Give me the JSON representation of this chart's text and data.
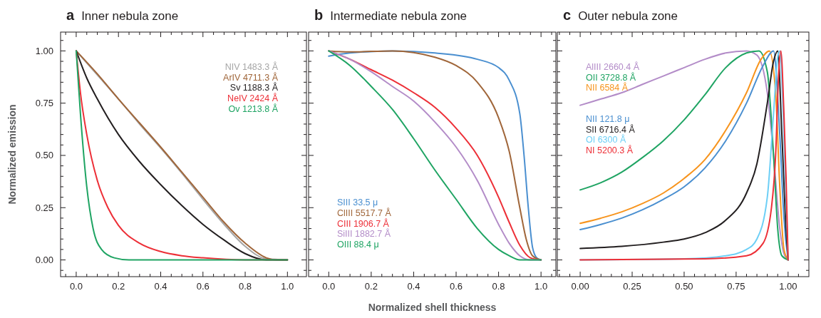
{
  "chart_data": [
    {
      "type": "line",
      "title": "a Inner nebula zone",
      "ylabel": "Normalized emission",
      "legend": "top right",
      "xlim": [
        -0.074,
        1.09
      ],
      "ylim": [
        -0.08,
        1.09
      ],
      "xticks": [
        {
          "value": 0,
          "label": "0.0"
        },
        {
          "value": 0.2,
          "label": "0.2"
        },
        {
          "value": 0.4,
          "label": "0.4"
        },
        {
          "value": 0.6,
          "label": "0.6"
        },
        {
          "value": 0.8,
          "label": "0.8"
        },
        {
          "value": 1,
          "label": "1.0"
        },
        {
          "value": -0.05,
          "label": null
        },
        {
          "value": 0.05,
          "label": null
        },
        {
          "value": 0.1,
          "label": null
        },
        {
          "value": 0.15,
          "label": null
        },
        {
          "value": 0.25,
          "label": null
        },
        {
          "value": 0.3,
          "label": null
        },
        {
          "value": 0.35,
          "label": null
        },
        {
          "value": 0.45,
          "label": null
        },
        {
          "value": 0.5,
          "label": null
        },
        {
          "value": 0.55,
          "label": null
        },
        {
          "value": 0.65,
          "label": null
        },
        {
          "value": 0.7,
          "label": null
        },
        {
          "value": 0.75,
          "label": null
        },
        {
          "value": 0.85,
          "label": null
        },
        {
          "value": 0.9,
          "label": null
        },
        {
          "value": 0.95,
          "label": null
        },
        {
          "value": 1.05,
          "label": null
        }
      ],
      "yticks": [
        {
          "value": 0,
          "label": "0.00"
        },
        {
          "value": 0.25,
          "label": "0.25"
        },
        {
          "value": 0.5,
          "label": "0.50"
        },
        {
          "value": 0.75,
          "label": "0.75"
        },
        {
          "value": 1,
          "label": "1.00"
        },
        {
          "value": -0.05,
          "label": null
        },
        {
          "value": 0.05,
          "label": null
        },
        {
          "value": 0.1,
          "label": null
        },
        {
          "value": 0.15,
          "label": null
        },
        {
          "value": 0.2,
          "label": null
        },
        {
          "value": 0.3,
          "label": null
        },
        {
          "value": 0.35,
          "label": null
        },
        {
          "value": 0.4,
          "label": null
        },
        {
          "value": 0.45,
          "label": null
        },
        {
          "value": 0.55,
          "label": null
        },
        {
          "value": 0.6,
          "label": null
        },
        {
          "value": 0.65,
          "label": null
        },
        {
          "value": 0.7,
          "label": null
        },
        {
          "value": 0.8,
          "label": null
        },
        {
          "value": 0.85,
          "label": null
        },
        {
          "value": 0.9,
          "label": null
        },
        {
          "value": 0.95,
          "label": null
        },
        {
          "value": 1.05,
          "label": null
        }
      ],
      "series": [
        {
          "name": "NIV 1483.3 Å",
          "color": "#a6a6a6",
          "x": [
            0,
            0.1,
            0.2,
            0.3,
            0.4,
            0.5,
            0.6,
            0.7,
            0.8,
            0.9,
            1
          ],
          "values": [
            1,
            0.885,
            0.77,
            0.65,
            0.535,
            0.415,
            0.29,
            0.17,
            0.065,
            0.005,
            0
          ]
        },
        {
          "name": "ArIV 4711.3 Å",
          "color": "#a0663a",
          "x": [
            0,
            0.1,
            0.2,
            0.3,
            0.4,
            0.5,
            0.6,
            0.7,
            0.8,
            0.9,
            0.95,
            1
          ],
          "values": [
            1,
            0.89,
            0.77,
            0.655,
            0.54,
            0.42,
            0.3,
            0.18,
            0.08,
            0.01,
            0,
            0
          ]
        },
        {
          "name": "Sv 1188.3 Å",
          "color": "#231f20",
          "x": [
            0,
            0.05,
            0.1,
            0.2,
            0.3,
            0.4,
            0.5,
            0.6,
            0.7,
            0.8,
            0.9,
            1
          ],
          "values": [
            1,
            0.87,
            0.77,
            0.6,
            0.47,
            0.36,
            0.26,
            0.17,
            0.095,
            0.03,
            0,
            0
          ]
        },
        {
          "name": "NeIV 2424 Å",
          "color": "#ed2f37",
          "x": [
            0,
            0.02,
            0.05,
            0.1,
            0.15,
            0.2,
            0.3,
            0.4,
            0.5,
            0.6,
            0.8,
            1
          ],
          "values": [
            1,
            0.8,
            0.6,
            0.38,
            0.25,
            0.165,
            0.08,
            0.04,
            0.02,
            0.01,
            0,
            0
          ]
        },
        {
          "name": "Ov 1213.8 Å",
          "color": "#1fa463",
          "x": [
            0,
            0.02,
            0.05,
            0.08,
            0.12,
            0.18,
            0.25,
            1
          ],
          "values": [
            1,
            0.7,
            0.35,
            0.15,
            0.05,
            0.01,
            0,
            0
          ]
        }
      ]
    },
    {
      "type": "line",
      "title": "b Intermediate nebula zone",
      "xlabel": "Normalized shell thickness",
      "legend": "bottom left",
      "tick_labels": "x",
      "xlim": [
        -0.095,
        1.07
      ],
      "ylim": [
        -0.08,
        1.09
      ],
      "xticks": [
        {
          "value": 0,
          "label": "0.0"
        },
        {
          "value": 0.2,
          "label": "0.2"
        },
        {
          "value": 0.4,
          "label": "0.4"
        },
        {
          "value": 0.6,
          "label": "0.6"
        },
        {
          "value": 0.8,
          "label": "0.8"
        },
        {
          "value": 1,
          "label": "1.0"
        },
        {
          "value": -0.05,
          "label": null
        },
        {
          "value": 0.05,
          "label": null
        },
        {
          "value": 0.1,
          "label": null
        },
        {
          "value": 0.15,
          "label": null
        },
        {
          "value": 0.25,
          "label": null
        },
        {
          "value": 0.3,
          "label": null
        },
        {
          "value": 0.35,
          "label": null
        },
        {
          "value": 0.45,
          "label": null
        },
        {
          "value": 0.5,
          "label": null
        },
        {
          "value": 0.55,
          "label": null
        },
        {
          "value": 0.65,
          "label": null
        },
        {
          "value": 0.7,
          "label": null
        },
        {
          "value": 0.75,
          "label": null
        },
        {
          "value": 0.85,
          "label": null
        },
        {
          "value": 0.9,
          "label": null
        },
        {
          "value": 0.95,
          "label": null
        },
        {
          "value": 1.05,
          "label": null
        }
      ],
      "yticks": [
        0,
        0.25,
        0.5,
        0.75,
        1,
        {
          "value": -0.05,
          "label": null
        },
        {
          "value": 0.05,
          "label": null
        },
        {
          "value": 0.1,
          "label": null
        },
        {
          "value": 0.15,
          "label": null
        },
        {
          "value": 0.2,
          "label": null
        },
        {
          "value": 0.3,
          "label": null
        },
        {
          "value": 0.35,
          "label": null
        },
        {
          "value": 0.4,
          "label": null
        },
        {
          "value": 0.45,
          "label": null
        },
        {
          "value": 0.55,
          "label": null
        },
        {
          "value": 0.6,
          "label": null
        },
        {
          "value": 0.65,
          "label": null
        },
        {
          "value": 0.7,
          "label": null
        },
        {
          "value": 0.8,
          "label": null
        },
        {
          "value": 0.85,
          "label": null
        },
        {
          "value": 0.9,
          "label": null
        },
        {
          "value": 0.95,
          "label": null
        },
        {
          "value": 1.05,
          "label": null
        }
      ],
      "series": [
        {
          "name": "SIII 33.5 μ",
          "color": "#4a8fd0",
          "x": [
            0,
            0.1,
            0.3,
            0.5,
            0.7,
            0.8,
            0.85,
            0.9,
            0.92,
            0.94,
            0.96,
            0.98,
            1
          ],
          "values": [
            0.975,
            0.99,
            1,
            0.99,
            0.96,
            0.92,
            0.86,
            0.7,
            0.5,
            0.25,
            0.06,
            0.01,
            0
          ]
        },
        {
          "name": "ClIII 5517.7 Å",
          "color": "#a0663a",
          "x": [
            0,
            0.1,
            0.3,
            0.5,
            0.6,
            0.7,
            0.8,
            0.85,
            0.9,
            0.93,
            0.96,
            1
          ],
          "values": [
            1,
            0.995,
            1,
            0.97,
            0.93,
            0.85,
            0.68,
            0.52,
            0.25,
            0.1,
            0.02,
            0
          ]
        },
        {
          "name": "CIII 1906.7 Å",
          "color": "#ed2f37",
          "x": [
            0,
            0.1,
            0.2,
            0.3,
            0.4,
            0.5,
            0.6,
            0.7,
            0.8,
            0.85,
            0.9,
            0.95,
            1
          ],
          "values": [
            1,
            0.96,
            0.91,
            0.86,
            0.8,
            0.73,
            0.63,
            0.5,
            0.3,
            0.18,
            0.07,
            0.01,
            0
          ]
        },
        {
          "name": "SiIII 1882.7 Å",
          "color": "#b38cc8",
          "x": [
            0,
            0.1,
            0.2,
            0.3,
            0.4,
            0.5,
            0.6,
            0.7,
            0.8,
            0.85,
            0.9,
            0.95,
            1
          ],
          "values": [
            1,
            0.96,
            0.9,
            0.83,
            0.76,
            0.66,
            0.54,
            0.38,
            0.17,
            0.08,
            0.02,
            0,
            0
          ]
        },
        {
          "name": "OIII 88.4 μ",
          "color": "#1fa463",
          "x": [
            0,
            0.1,
            0.2,
            0.3,
            0.4,
            0.5,
            0.6,
            0.7,
            0.8,
            0.85,
            0.9,
            1
          ],
          "values": [
            1,
            0.93,
            0.83,
            0.72,
            0.58,
            0.43,
            0.29,
            0.15,
            0.05,
            0.02,
            0,
            0
          ]
        }
      ]
    },
    {
      "type": "line",
      "title": "c Outer nebula zone",
      "legend": "top left",
      "tick_labels": "x",
      "xlim": [
        -0.11,
        1.1
      ],
      "ylim": [
        -0.08,
        1.09
      ],
      "xticks": [
        {
          "value": 0,
          "label": "0.00"
        },
        {
          "value": 0.25,
          "label": "0.25"
        },
        {
          "value": 0.5,
          "label": "0.50"
        },
        {
          "value": 0.75,
          "label": "0.75"
        },
        {
          "value": 1,
          "label": "1.00"
        },
        {
          "value": -0.1,
          "label": null
        },
        {
          "value": -0.05,
          "label": null
        },
        {
          "value": 0.05,
          "label": null
        },
        {
          "value": 0.1,
          "label": null
        },
        {
          "value": 0.15,
          "label": null
        },
        {
          "value": 0.2,
          "label": null
        },
        {
          "value": 0.3,
          "label": null
        },
        {
          "value": 0.35,
          "label": null
        },
        {
          "value": 0.4,
          "label": null
        },
        {
          "value": 0.45,
          "label": null
        },
        {
          "value": 0.55,
          "label": null
        },
        {
          "value": 0.6,
          "label": null
        },
        {
          "value": 0.65,
          "label": null
        },
        {
          "value": 0.7,
          "label": null
        },
        {
          "value": 0.8,
          "label": null
        },
        {
          "value": 0.85,
          "label": null
        },
        {
          "value": 0.9,
          "label": null
        },
        {
          "value": 0.95,
          "label": null
        },
        {
          "value": 1.05,
          "label": null
        }
      ],
      "yticks": [
        0,
        0.25,
        0.5,
        0.75,
        1,
        {
          "value": -0.05,
          "label": null
        },
        {
          "value": 0.05,
          "label": null
        },
        {
          "value": 0.1,
          "label": null
        },
        {
          "value": 0.15,
          "label": null
        },
        {
          "value": 0.2,
          "label": null
        },
        {
          "value": 0.3,
          "label": null
        },
        {
          "value": 0.35,
          "label": null
        },
        {
          "value": 0.4,
          "label": null
        },
        {
          "value": 0.45,
          "label": null
        },
        {
          "value": 0.55,
          "label": null
        },
        {
          "value": 0.6,
          "label": null
        },
        {
          "value": 0.65,
          "label": null
        },
        {
          "value": 0.7,
          "label": null
        },
        {
          "value": 0.8,
          "label": null
        },
        {
          "value": 0.85,
          "label": null
        },
        {
          "value": 0.9,
          "label": null
        },
        {
          "value": 0.95,
          "label": null
        },
        {
          "value": 1.05,
          "label": null
        }
      ],
      "series": [
        {
          "name": "AlIII 2660.4 Å",
          "color": "#b38cc8",
          "x": [
            0,
            0.1,
            0.2,
            0.3,
            0.4,
            0.5,
            0.6,
            0.7,
            0.8,
            0.85,
            0.9,
            0.93,
            0.96,
            0.98,
            1
          ],
          "values": [
            0.74,
            0.77,
            0.8,
            0.84,
            0.88,
            0.92,
            0.96,
            0.99,
            1,
            0.98,
            0.8,
            0.5,
            0.15,
            0.03,
            0
          ]
        },
        {
          "name": "OII 3728.8 Å",
          "color": "#1fa463",
          "x": [
            0,
            0.1,
            0.2,
            0.3,
            0.4,
            0.5,
            0.6,
            0.7,
            0.8,
            0.86,
            0.9,
            0.93,
            0.95,
            0.97,
            1
          ],
          "values": [
            0.335,
            0.37,
            0.42,
            0.49,
            0.57,
            0.67,
            0.79,
            0.92,
            0.99,
            1,
            0.9,
            0.5,
            0.15,
            0.02,
            0
          ]
        },
        {
          "name": "NII 6584 Å",
          "color": "#f7941d",
          "x": [
            0,
            0.1,
            0.2,
            0.3,
            0.4,
            0.5,
            0.6,
            0.7,
            0.8,
            0.87,
            0.91,
            0.94,
            0.96,
            0.98,
            1
          ],
          "values": [
            0.175,
            0.2,
            0.23,
            0.27,
            0.32,
            0.39,
            0.48,
            0.62,
            0.8,
            0.96,
            1,
            0.8,
            0.35,
            0.05,
            0
          ]
        },
        {
          "name": "NII 121.8 μ",
          "color": "#4a8fd0",
          "x": [
            0,
            0.1,
            0.2,
            0.3,
            0.4,
            0.5,
            0.6,
            0.7,
            0.8,
            0.88,
            0.93,
            0.96,
            0.98,
            1
          ],
          "values": [
            0.145,
            0.17,
            0.2,
            0.24,
            0.29,
            0.35,
            0.44,
            0.57,
            0.75,
            0.93,
            1,
            0.6,
            0.2,
            0
          ]
        },
        {
          "name": "SII 6716.4 Å",
          "color": "#231f20",
          "x": [
            0,
            0.2,
            0.4,
            0.5,
            0.6,
            0.7,
            0.8,
            0.85,
            0.9,
            0.93,
            0.95,
            0.97,
            0.99,
            1
          ],
          "values": [
            0.055,
            0.065,
            0.085,
            0.1,
            0.13,
            0.19,
            0.32,
            0.46,
            0.75,
            0.95,
            1,
            0.6,
            0.15,
            0
          ]
        },
        {
          "name": "OI 6300 Å",
          "color": "#6dcff6",
          "x": [
            0,
            0.5,
            0.7,
            0.8,
            0.85,
            0.9,
            0.93,
            0.95,
            0.96,
            0.98,
            1
          ],
          "values": [
            0,
            0.005,
            0.02,
            0.05,
            0.1,
            0.3,
            0.7,
            0.97,
            1,
            0.6,
            0
          ]
        },
        {
          "name": "NI 5200.3 Å",
          "color": "#ed2f37",
          "x": [
            0,
            0.6,
            0.8,
            0.88,
            0.92,
            0.94,
            0.955,
            0.965,
            0.98,
            0.99,
            1
          ],
          "values": [
            0,
            0.005,
            0.02,
            0.08,
            0.25,
            0.5,
            0.9,
            1,
            0.7,
            0.4,
            0
          ]
        }
      ]
    }
  ]
}
